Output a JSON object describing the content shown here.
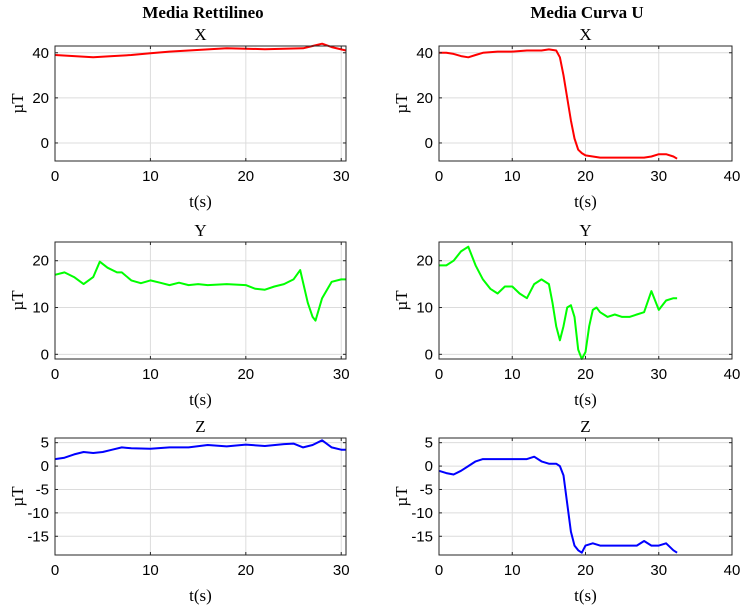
{
  "column_titles": [
    "Media Rettilineo",
    "Media Curva U"
  ],
  "chart_data": [
    {
      "type": "line",
      "title": "X",
      "xlabel": "t(s)",
      "ylabel": "µT",
      "xlim": [
        0,
        30.5
      ],
      "ylim": [
        -8,
        43
      ],
      "xticks": [
        0,
        10,
        20,
        30
      ],
      "yticks": [
        0,
        20,
        40
      ],
      "grid": true,
      "color": "#ff0000",
      "series": [
        {
          "x": [
            0,
            2,
            4,
            6,
            8,
            10,
            12,
            14,
            16,
            18,
            20,
            22,
            24,
            26,
            27,
            28,
            29,
            30,
            30.5
          ],
          "y": [
            39,
            38.5,
            38,
            38.5,
            39,
            39.8,
            40.5,
            41,
            41.5,
            42,
            41.8,
            41.6,
            41.8,
            42,
            43,
            44,
            42.5,
            41.5,
            41
          ]
        }
      ]
    },
    {
      "type": "line",
      "title": "X",
      "xlabel": "t(s)",
      "ylabel": "µT",
      "xlim": [
        0,
        40
      ],
      "ylim": [
        -8,
        43
      ],
      "xticks": [
        0,
        10,
        20,
        30,
        40
      ],
      "yticks": [
        0,
        20,
        40
      ],
      "grid": true,
      "color": "#ff0000",
      "series": [
        {
          "x": [
            0,
            1,
            2,
            3,
            4,
            5,
            6,
            8,
            10,
            12,
            14,
            15,
            16,
            16.5,
            17,
            17.5,
            18,
            18.5,
            19,
            19.5,
            20,
            21,
            22,
            24,
            26,
            28,
            29,
            30,
            31,
            32,
            32.5
          ],
          "y": [
            40,
            40,
            39.5,
            38.5,
            38,
            39,
            40,
            40.5,
            40.5,
            41,
            41,
            41.5,
            41,
            38,
            30,
            20,
            10,
            2,
            -3,
            -4.5,
            -5.5,
            -6,
            -6.5,
            -6.5,
            -6.5,
            -6.5,
            -6,
            -5,
            -5,
            -6,
            -7
          ]
        }
      ]
    },
    {
      "type": "line",
      "title": "Y",
      "xlabel": "t(s)",
      "ylabel": "µT",
      "xlim": [
        0,
        30.5
      ],
      "ylim": [
        -1,
        24
      ],
      "xticks": [
        0,
        10,
        20,
        30
      ],
      "yticks": [
        0,
        10,
        20
      ],
      "grid": true,
      "color": "#00ff00",
      "series": [
        {
          "x": [
            0,
            1,
            2,
            3,
            4,
            4.7,
            5.5,
            6.5,
            7,
            8,
            9,
            10,
            11,
            12,
            13,
            14,
            15,
            16,
            18,
            20,
            21,
            22,
            23,
            24,
            25,
            25.7,
            26.5,
            27,
            27.3,
            28,
            29,
            30,
            30.5
          ],
          "y": [
            17,
            17.5,
            16.5,
            15,
            16.5,
            19.8,
            18.5,
            17.5,
            17.5,
            15.8,
            15.2,
            15.8,
            15.3,
            14.8,
            15.3,
            14.8,
            15,
            14.8,
            15,
            14.8,
            14,
            13.8,
            14.5,
            15,
            16,
            18,
            11,
            8,
            7.2,
            12,
            15.5,
            16,
            16
          ]
        }
      ]
    },
    {
      "type": "line",
      "title": "Y",
      "xlabel": "t(s)",
      "ylabel": "µT",
      "xlim": [
        0,
        40
      ],
      "ylim": [
        -1,
        24
      ],
      "xticks": [
        0,
        10,
        20,
        30,
        40
      ],
      "yticks": [
        0,
        10,
        20
      ],
      "grid": true,
      "color": "#00ff00",
      "series": [
        {
          "x": [
            0,
            1,
            2,
            3,
            4,
            5,
            6,
            7,
            8,
            9,
            10,
            11,
            12,
            13,
            14,
            15,
            15.5,
            16,
            16.5,
            17,
            17.5,
            18,
            18.5,
            19,
            19.5,
            20,
            20.5,
            21,
            21.5,
            22,
            23,
            24,
            25,
            26,
            27,
            28,
            29,
            30,
            31,
            32,
            32.5
          ],
          "y": [
            19,
            19,
            20,
            22,
            23,
            19,
            16,
            14,
            13,
            14.5,
            14.5,
            13,
            12,
            15,
            16,
            15,
            11,
            6,
            3,
            6,
            10,
            10.5,
            8,
            1,
            -1,
            0.5,
            6,
            9.5,
            10,
            9,
            8,
            8.5,
            8,
            8,
            8.5,
            9,
            13.5,
            9.5,
            11.5,
            12,
            12
          ]
        }
      ]
    },
    {
      "type": "line",
      "title": "Z",
      "xlabel": "t(s)",
      "ylabel": "µT",
      "xlim": [
        0,
        30.5
      ],
      "ylim": [
        -19,
        6
      ],
      "xticks": [
        0,
        10,
        20,
        30
      ],
      "yticks": [
        5,
        0,
        -5,
        -10,
        -15
      ],
      "grid": true,
      "color": "#0000ff",
      "series": [
        {
          "x": [
            0,
            1,
            2,
            3,
            4,
            5,
            6,
            7,
            8,
            10,
            12,
            14,
            16,
            18,
            20,
            22,
            24,
            25,
            26,
            27,
            28,
            29,
            30,
            30.5
          ],
          "y": [
            1.5,
            1.8,
            2.5,
            3,
            2.8,
            3,
            3.5,
            4,
            3.8,
            3.7,
            4,
            4,
            4.5,
            4.2,
            4.6,
            4.3,
            4.7,
            4.8,
            4,
            4.5,
            5.5,
            4,
            3.5,
            3.5
          ]
        }
      ]
    },
    {
      "type": "line",
      "title": "Z",
      "xlabel": "t(s)",
      "ylabel": "µT",
      "xlim": [
        0,
        40
      ],
      "ylim": [
        -19,
        6
      ],
      "xticks": [
        0,
        10,
        20,
        30,
        40
      ],
      "yticks": [
        5,
        0,
        -5,
        -10,
        -15
      ],
      "grid": true,
      "color": "#0000ff",
      "series": [
        {
          "x": [
            0,
            1,
            2,
            3,
            4,
            5,
            6,
            8,
            10,
            12,
            13,
            14,
            15,
            16,
            16.5,
            17,
            17.5,
            18,
            18.5,
            19,
            19.5,
            20,
            21,
            22,
            24,
            26,
            27,
            28,
            29,
            30,
            31,
            32,
            32.5
          ],
          "y": [
            -1,
            -1.5,
            -1.8,
            -1,
            0,
            1,
            1.5,
            1.5,
            1.5,
            1.5,
            2,
            1,
            0.5,
            0.5,
            0,
            -2,
            -8,
            -14,
            -17,
            -18,
            -18.5,
            -17,
            -16.5,
            -17,
            -17,
            -17,
            -17,
            -16,
            -17,
            -17,
            -16.5,
            -18,
            -18.5
          ]
        }
      ]
    }
  ]
}
